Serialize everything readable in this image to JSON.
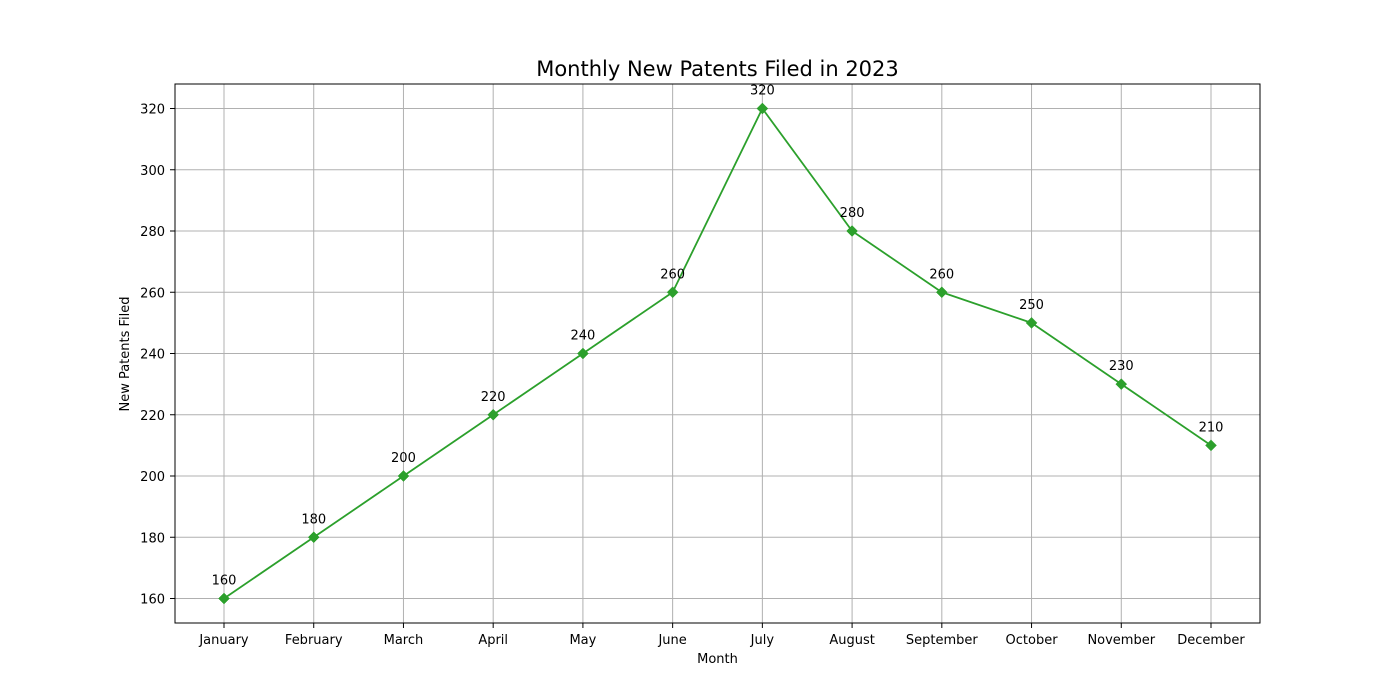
{
  "chart_data": {
    "type": "line",
    "title": "Monthly New Patents Filed in 2023",
    "xlabel": "Month",
    "ylabel": "New Patents Filed",
    "categories": [
      "January",
      "February",
      "March",
      "April",
      "May",
      "June",
      "July",
      "August",
      "September",
      "October",
      "November",
      "December"
    ],
    "series": [
      {
        "name": "New Patents Filed",
        "values": [
          160,
          180,
          200,
          220,
          240,
          260,
          320,
          280,
          260,
          250,
          230,
          210
        ],
        "color": "#2ca02c",
        "marker": "diamond"
      }
    ],
    "data_labels": [
      "160",
      "180",
      "200",
      "220",
      "240",
      "260",
      "320",
      "280",
      "260",
      "250",
      "230",
      "210"
    ],
    "ylim": [
      152,
      328
    ],
    "yticks": [
      160,
      180,
      200,
      220,
      240,
      260,
      280,
      300,
      320
    ],
    "ytick_labels": [
      "160",
      "180",
      "200",
      "220",
      "240",
      "260",
      "280",
      "300",
      "320"
    ],
    "grid": true,
    "grid_color": "#b0b0b0",
    "axis_color": "#000000"
  }
}
